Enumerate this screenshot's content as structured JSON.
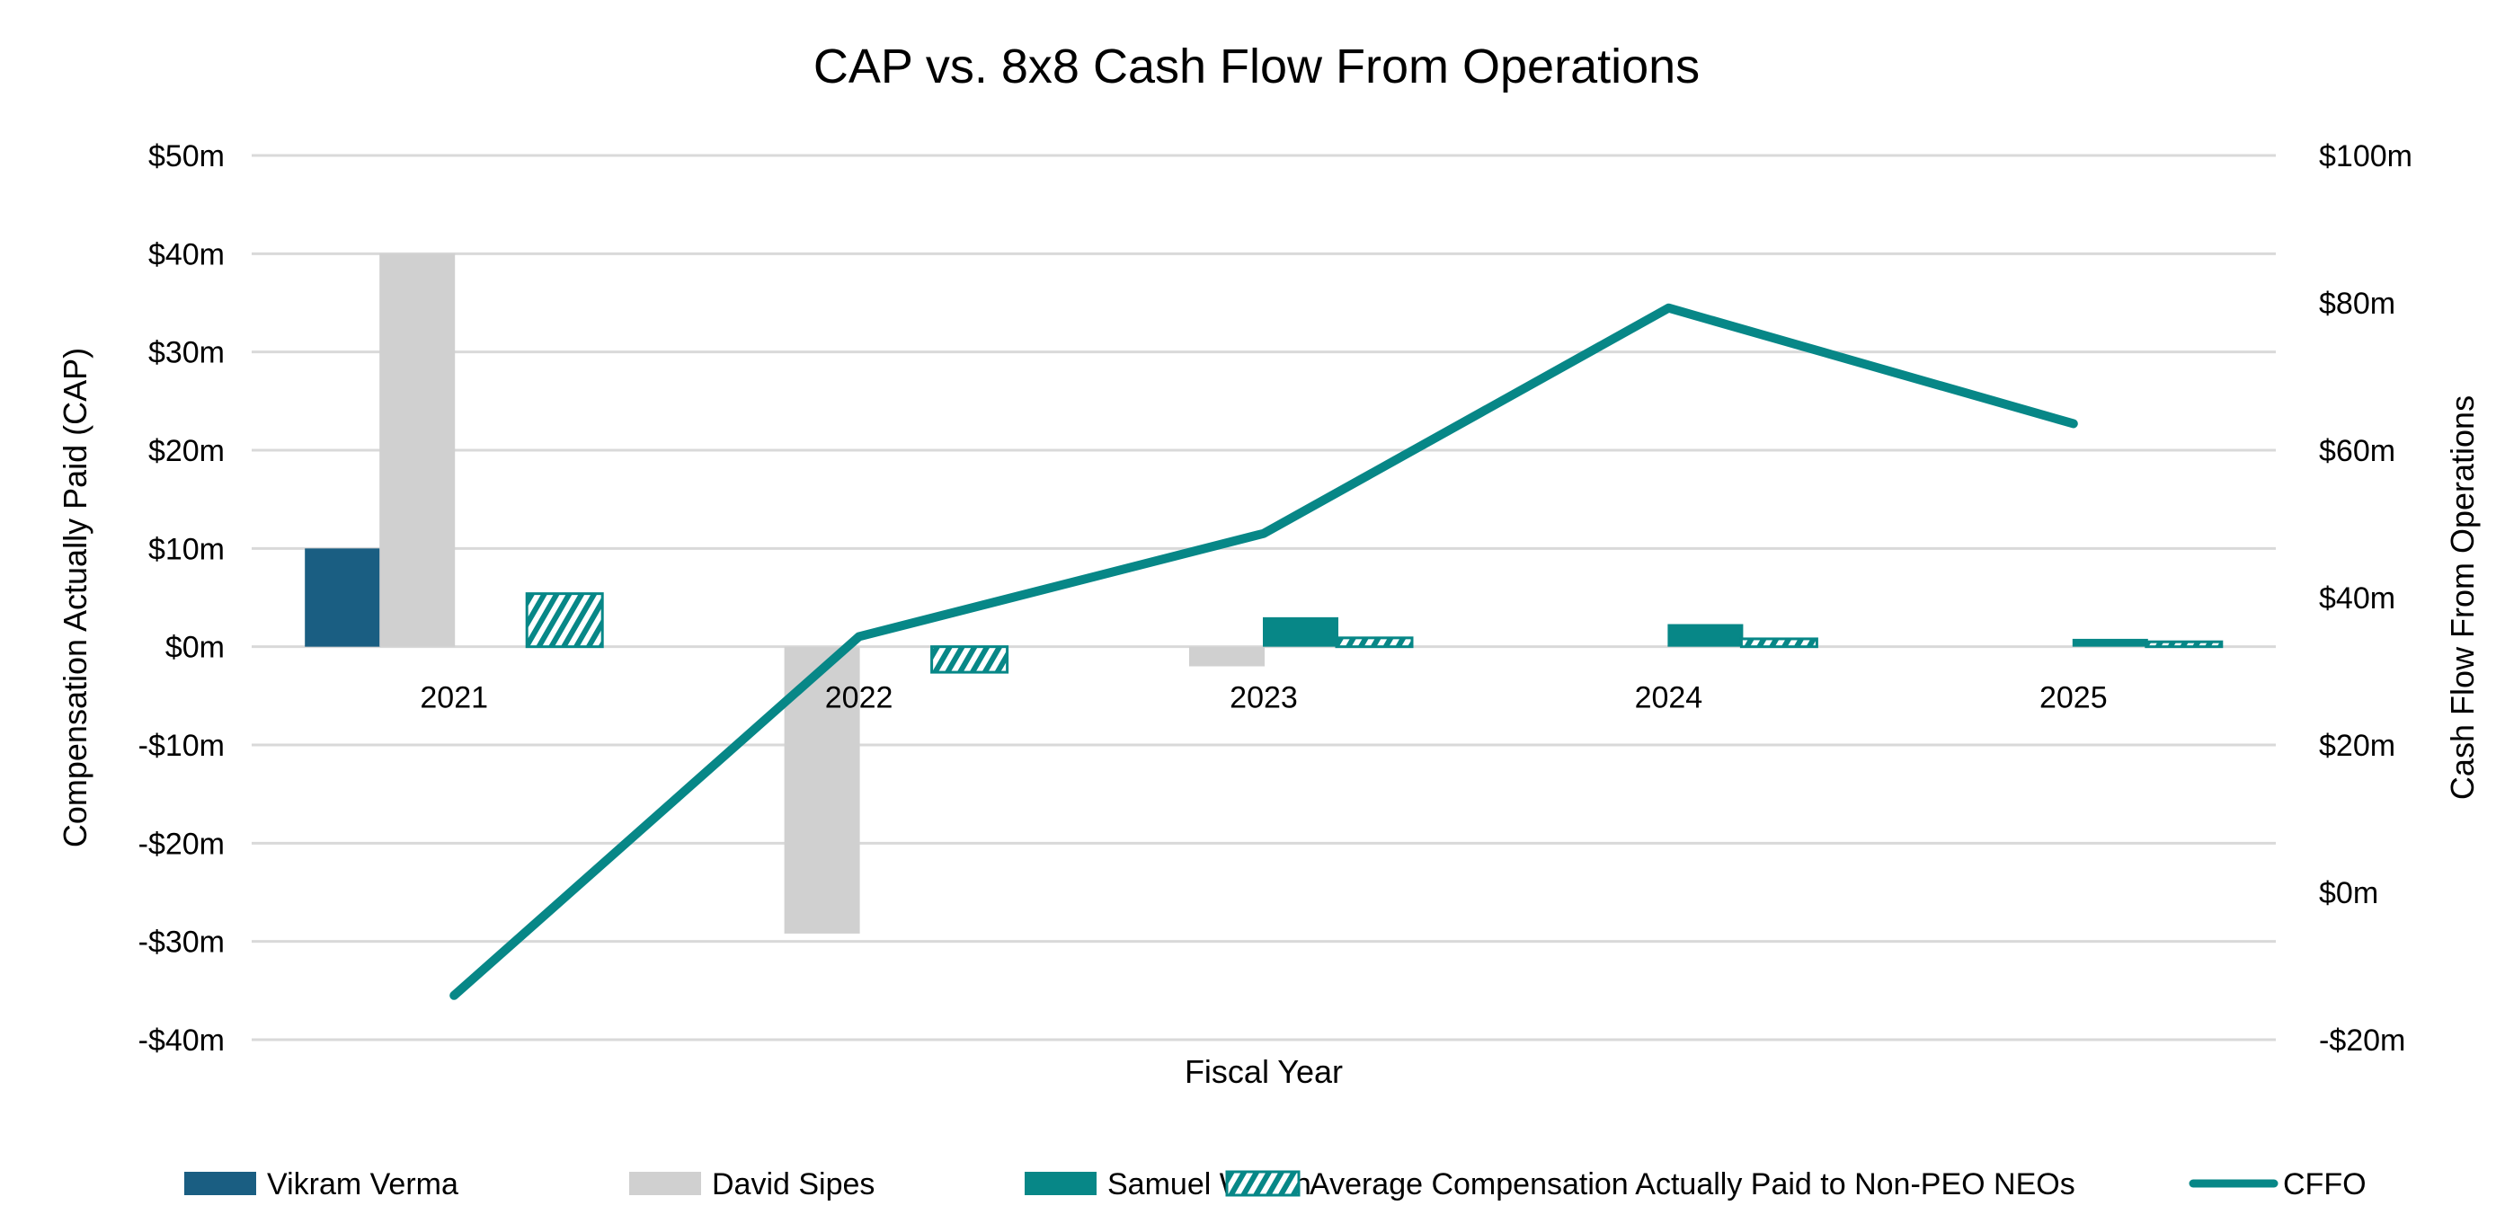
{
  "chart_data": {
    "type": "bar",
    "title": "CAP vs. 8x8 Cash Flow From Operations",
    "xlabel": "Fiscal Year",
    "ylabel": "Compensation Actually Paid (CAP)",
    "y2label": "Cash Flow From Operations",
    "categories": [
      "2021",
      "2022",
      "2023",
      "2024",
      "2025"
    ],
    "ylim": [
      -40,
      50
    ],
    "y_ticks": [
      50,
      40,
      30,
      20,
      10,
      0,
      -10,
      -20,
      -30,
      -40
    ],
    "y_tick_labels": [
      "$50m",
      "$40m",
      "$30m",
      "$20m",
      "$10m",
      "$0m",
      "-$10m",
      "-$20m",
      "-$30m",
      "-$40m"
    ],
    "y2lim": [
      -20,
      100
    ],
    "y2_ticks": [
      100,
      80,
      60,
      40,
      20,
      0,
      -20
    ],
    "y2_tick_labels": [
      "$100m",
      "$80m",
      "$60m",
      "$40m",
      "$20m",
      "$0m",
      "-$20m"
    ],
    "grid": true,
    "legend_position": "bottom",
    "series": [
      {
        "name": "Vikram Verma",
        "type": "bar",
        "axis": "left",
        "color": "#1a5e82",
        "values": [
          10,
          null,
          null,
          null,
          null
        ]
      },
      {
        "name": "David Sipes",
        "type": "bar",
        "axis": "left",
        "color": "#d0d0d0",
        "values": [
          40,
          -29.2,
          -2.0,
          null,
          null
        ]
      },
      {
        "name": "Samuel Wilson",
        "type": "bar",
        "axis": "left",
        "color": "#078787",
        "values": [
          null,
          null,
          3.0,
          2.3,
          0.8
        ]
      },
      {
        "name": "Average Compensation Actually Paid to Non-PEO NEOs",
        "type": "bar",
        "axis": "left",
        "color": "#078787",
        "pattern": "hatched",
        "values": [
          5.4,
          -2.6,
          0.9,
          0.8,
          0.5
        ]
      },
      {
        "name": "CFFO",
        "type": "line",
        "axis": "right",
        "color": "#078787",
        "values": [
          -14,
          34.7,
          48.7,
          79.3,
          63.6
        ]
      }
    ]
  }
}
